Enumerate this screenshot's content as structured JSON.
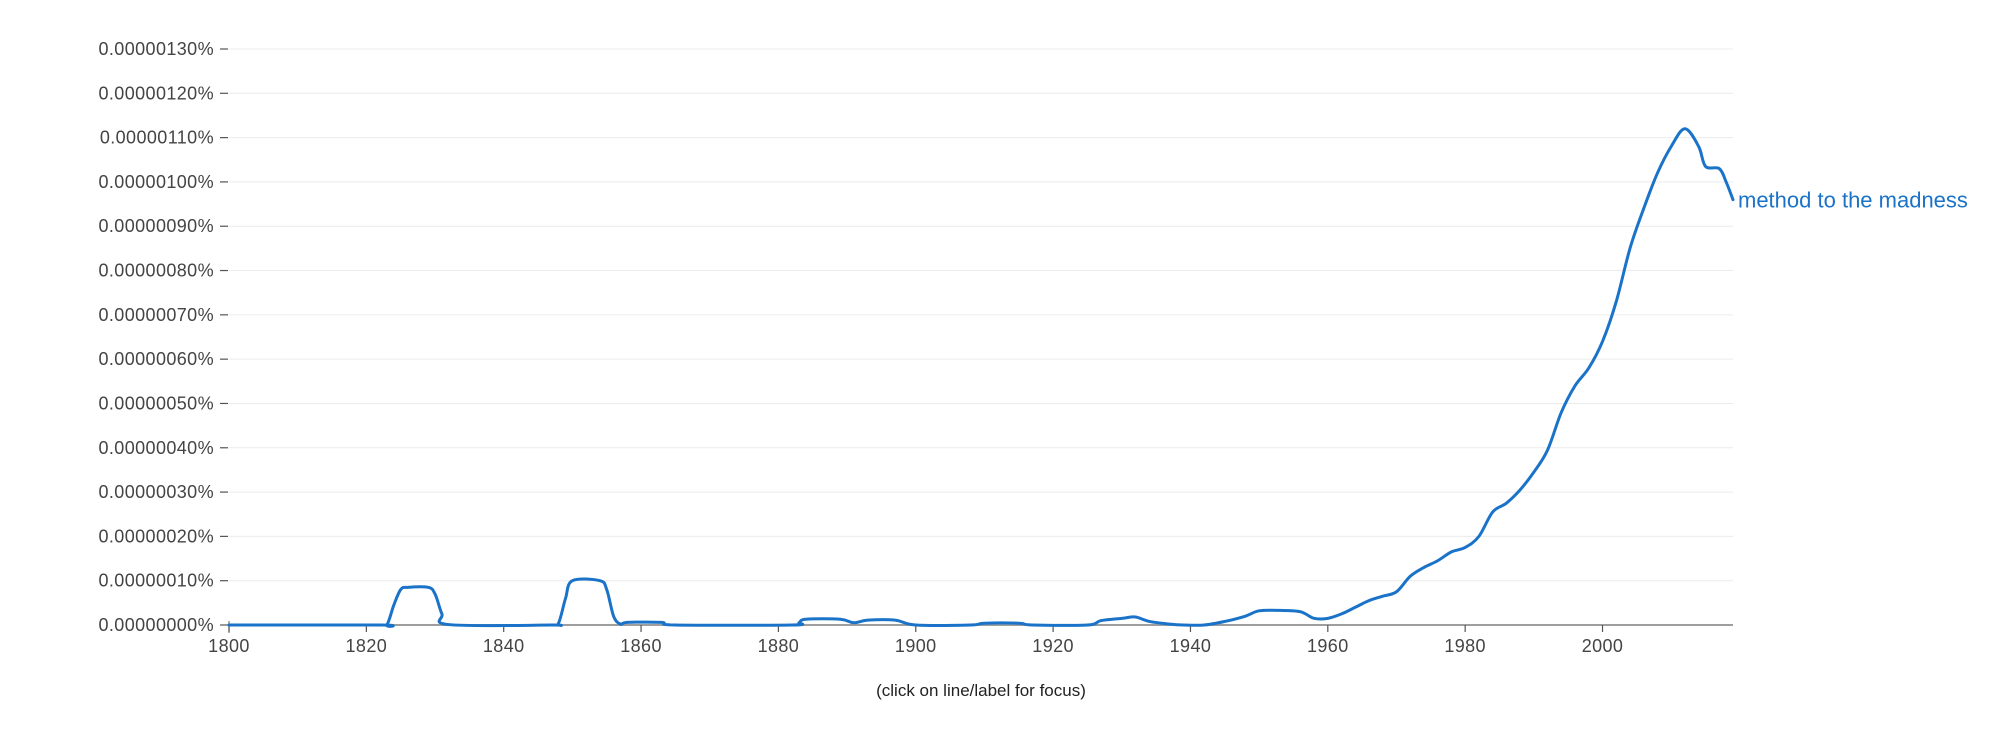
{
  "chart_data": {
    "type": "line",
    "title": "",
    "xlabel": "",
    "ylabel": "",
    "xlim": [
      1800,
      2019
    ],
    "ylim": [
      0,
      1.3e-06
    ],
    "grid": true,
    "y_ticks": [
      {
        "value": 0.0,
        "label": "0.00000000%"
      },
      {
        "value": 1e-07,
        "label": "0.00000010%"
      },
      {
        "value": 2e-07,
        "label": "0.00000020%"
      },
      {
        "value": 3e-07,
        "label": "0.00000030%"
      },
      {
        "value": 4e-07,
        "label": "0.00000040%"
      },
      {
        "value": 5e-07,
        "label": "0.00000050%"
      },
      {
        "value": 6e-07,
        "label": "0.00000060%"
      },
      {
        "value": 7e-07,
        "label": "0.00000070%"
      },
      {
        "value": 8e-07,
        "label": "0.00000080%"
      },
      {
        "value": 9e-07,
        "label": "0.00000090%"
      },
      {
        "value": 1e-06,
        "label": "0.00000100%"
      },
      {
        "value": 1.1e-06,
        "label": "0.00000110%"
      },
      {
        "value": 1.2e-06,
        "label": "0.00000120%"
      },
      {
        "value": 1.3e-06,
        "label": "0.00000130%"
      }
    ],
    "x_ticks": [
      {
        "value": 1800,
        "label": "1800"
      },
      {
        "value": 1820,
        "label": "1820"
      },
      {
        "value": 1840,
        "label": "1840"
      },
      {
        "value": 1860,
        "label": "1860"
      },
      {
        "value": 1880,
        "label": "1880"
      },
      {
        "value": 1900,
        "label": "1900"
      },
      {
        "value": 1920,
        "label": "1920"
      },
      {
        "value": 1940,
        "label": "1940"
      },
      {
        "value": 1960,
        "label": "1960"
      },
      {
        "value": 1980,
        "label": "1980"
      },
      {
        "value": 2000,
        "label": "2000"
      }
    ],
    "series": [
      {
        "name": "method to the madness",
        "color": "#1a73c8",
        "points": [
          [
            1800,
            0.0
          ],
          [
            1822,
            0.0
          ],
          [
            1823,
            5e-10
          ],
          [
            1824,
            4.5e-08
          ],
          [
            1825,
            8e-08
          ],
          [
            1826,
            8.5e-08
          ],
          [
            1829,
            8.5e-08
          ],
          [
            1830,
            7e-08
          ],
          [
            1831,
            2.5e-08
          ],
          [
            1832,
            1e-09
          ],
          [
            1847,
            0.0
          ],
          [
            1848,
            5e-09
          ],
          [
            1849,
            6e-08
          ],
          [
            1850,
            1e-07
          ],
          [
            1854,
            1e-07
          ],
          [
            1855,
            8e-08
          ],
          [
            1856,
            2e-08
          ],
          [
            1857,
            2e-09
          ],
          [
            1858,
            6e-09
          ],
          [
            1863,
            6e-09
          ],
          [
            1865,
            0.0
          ],
          [
            1882,
            0.0
          ],
          [
            1883,
            5e-09
          ],
          [
            1884,
            1.3e-08
          ],
          [
            1889,
            1.3e-08
          ],
          [
            1891,
            5e-09
          ],
          [
            1893,
            1.1e-08
          ],
          [
            1897,
            1.1e-08
          ],
          [
            1900,
            0.0
          ],
          [
            1908,
            0.0
          ],
          [
            1910,
            4e-09
          ],
          [
            1915,
            4e-09
          ],
          [
            1917,
            0.0
          ],
          [
            1925,
            0.0
          ],
          [
            1927,
            1e-08
          ],
          [
            1930,
            1.5e-08
          ],
          [
            1932,
            1.8e-08
          ],
          [
            1934,
            8e-09
          ],
          [
            1937,
            2e-09
          ],
          [
            1939,
            0.0
          ],
          [
            1942,
            0.0
          ],
          [
            1945,
            8e-09
          ],
          [
            1948,
            2e-08
          ],
          [
            1950,
            3.2e-08
          ],
          [
            1953,
            3.3e-08
          ],
          [
            1956,
            3e-08
          ],
          [
            1958,
            1.5e-08
          ],
          [
            1960,
            1.5e-08
          ],
          [
            1962,
            2.5e-08
          ],
          [
            1964,
            4e-08
          ],
          [
            1966,
            5.5e-08
          ],
          [
            1968,
            6.5e-08
          ],
          [
            1970,
            7.5e-08
          ],
          [
            1972,
            1.1e-07
          ],
          [
            1974,
            1.3e-07
          ],
          [
            1976,
            1.45e-07
          ],
          [
            1978,
            1.65e-07
          ],
          [
            1980,
            1.75e-07
          ],
          [
            1982,
            2e-07
          ],
          [
            1984,
            2.55e-07
          ],
          [
            1986,
            2.75e-07
          ],
          [
            1988,
            3.05e-07
          ],
          [
            1990,
            3.45e-07
          ],
          [
            1992,
            3.95e-07
          ],
          [
            1994,
            4.8e-07
          ],
          [
            1996,
            5.4e-07
          ],
          [
            1998,
            5.8e-07
          ],
          [
            2000,
            6.4e-07
          ],
          [
            2002,
            7.3e-07
          ],
          [
            2004,
            8.5e-07
          ],
          [
            2006,
            9.4e-07
          ],
          [
            2008,
            1.02e-06
          ],
          [
            2010,
            1.08e-06
          ],
          [
            2012,
            1.12e-06
          ],
          [
            2014,
            1.08e-06
          ],
          [
            2015,
            1.035e-06
          ],
          [
            2017,
            1.03e-06
          ],
          [
            2018,
            1e-06
          ],
          [
            2019,
            9.6e-07
          ]
        ]
      }
    ],
    "note": "(click on line/label for focus)"
  }
}
